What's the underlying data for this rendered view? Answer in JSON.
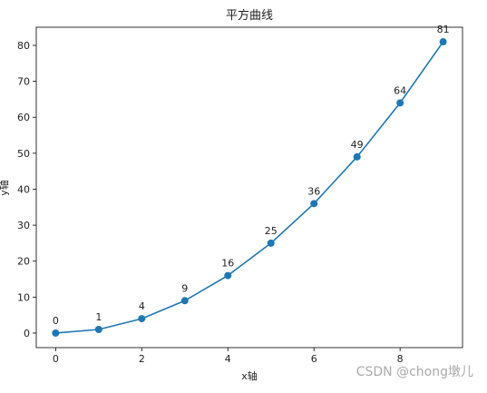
{
  "chart_data": {
    "type": "line",
    "title": "平方曲线",
    "x_label": "x轴",
    "y_label": "y轴",
    "x": [
      0,
      1,
      2,
      3,
      4,
      5,
      6,
      7,
      8,
      9
    ],
    "series": [
      {
        "color": "#1f77b4",
        "values": [
          0,
          1,
          4,
          9,
          16,
          25,
          36,
          49,
          64,
          81
        ]
      }
    ],
    "xlim": [
      -0.45,
      9.45
    ],
    "ylim": [
      -4.05,
      85.05
    ],
    "xticks": [
      0,
      2,
      4,
      6,
      8
    ],
    "yticks": [
      0,
      10,
      20,
      30,
      40,
      50,
      60,
      70,
      80
    ],
    "markers": true,
    "data_labels": true
  },
  "watermark": "CSDN @chong墩儿"
}
